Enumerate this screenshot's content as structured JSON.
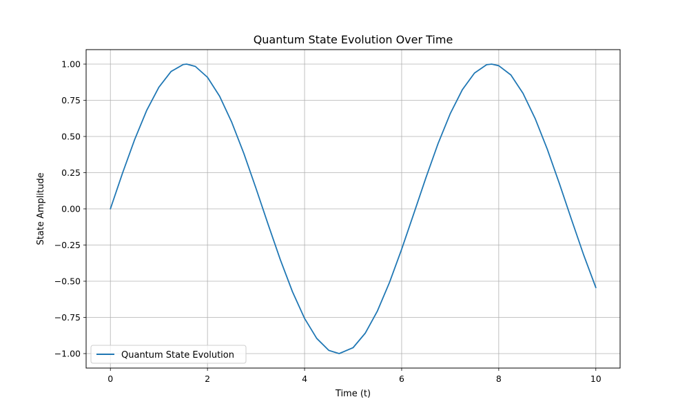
{
  "chart_data": {
    "type": "line",
    "title": "Quantum State Evolution Over Time",
    "xlabel": "Time (t)",
    "ylabel": "State Amplitude",
    "xlim": [
      -0.5,
      10.5
    ],
    "ylim": [
      -1.1,
      1.1
    ],
    "xticks": [
      0,
      2,
      4,
      6,
      8,
      10
    ],
    "xtick_labels": [
      "0",
      "2",
      "4",
      "6",
      "8",
      "10"
    ],
    "yticks": [
      1.0,
      0.75,
      0.5,
      0.25,
      0.0,
      -0.25,
      -0.5,
      -0.75,
      -1.0
    ],
    "ytick_labels": [
      "1.00",
      "0.75",
      "0.50",
      "0.25",
      "0.00",
      "−0.25",
      "−0.50",
      "−0.75",
      "−1.00"
    ],
    "grid": true,
    "legend_position": "lower-left",
    "series": [
      {
        "name": "Quantum State Evolution",
        "color": "#1f77b4",
        "x": [
          0,
          0.25,
          0.5,
          0.75,
          1.0,
          1.25,
          1.5,
          1.5708,
          1.75,
          2.0,
          2.25,
          2.5,
          2.75,
          3.0,
          3.25,
          3.5,
          3.75,
          4.0,
          4.25,
          4.5,
          4.7124,
          5.0,
          5.25,
          5.5,
          5.75,
          6.0,
          6.25,
          6.5,
          6.75,
          7.0,
          7.25,
          7.5,
          7.75,
          7.854,
          8.0,
          8.25,
          8.5,
          8.75,
          9.0,
          9.25,
          9.5,
          9.75,
          10.0
        ],
        "y": [
          0.0,
          0.247,
          0.479,
          0.682,
          0.841,
          0.949,
          0.997,
          1.0,
          0.984,
          0.909,
          0.778,
          0.598,
          0.382,
          0.141,
          -0.108,
          -0.351,
          -0.572,
          -0.757,
          -0.895,
          -0.978,
          -1.0,
          -0.959,
          -0.859,
          -0.706,
          -0.508,
          -0.279,
          -0.033,
          0.215,
          0.451,
          0.657,
          0.823,
          0.938,
          0.996,
          1.0,
          0.989,
          0.925,
          0.798,
          0.624,
          0.412,
          0.174,
          -0.075,
          -0.319,
          -0.544
        ]
      }
    ]
  }
}
